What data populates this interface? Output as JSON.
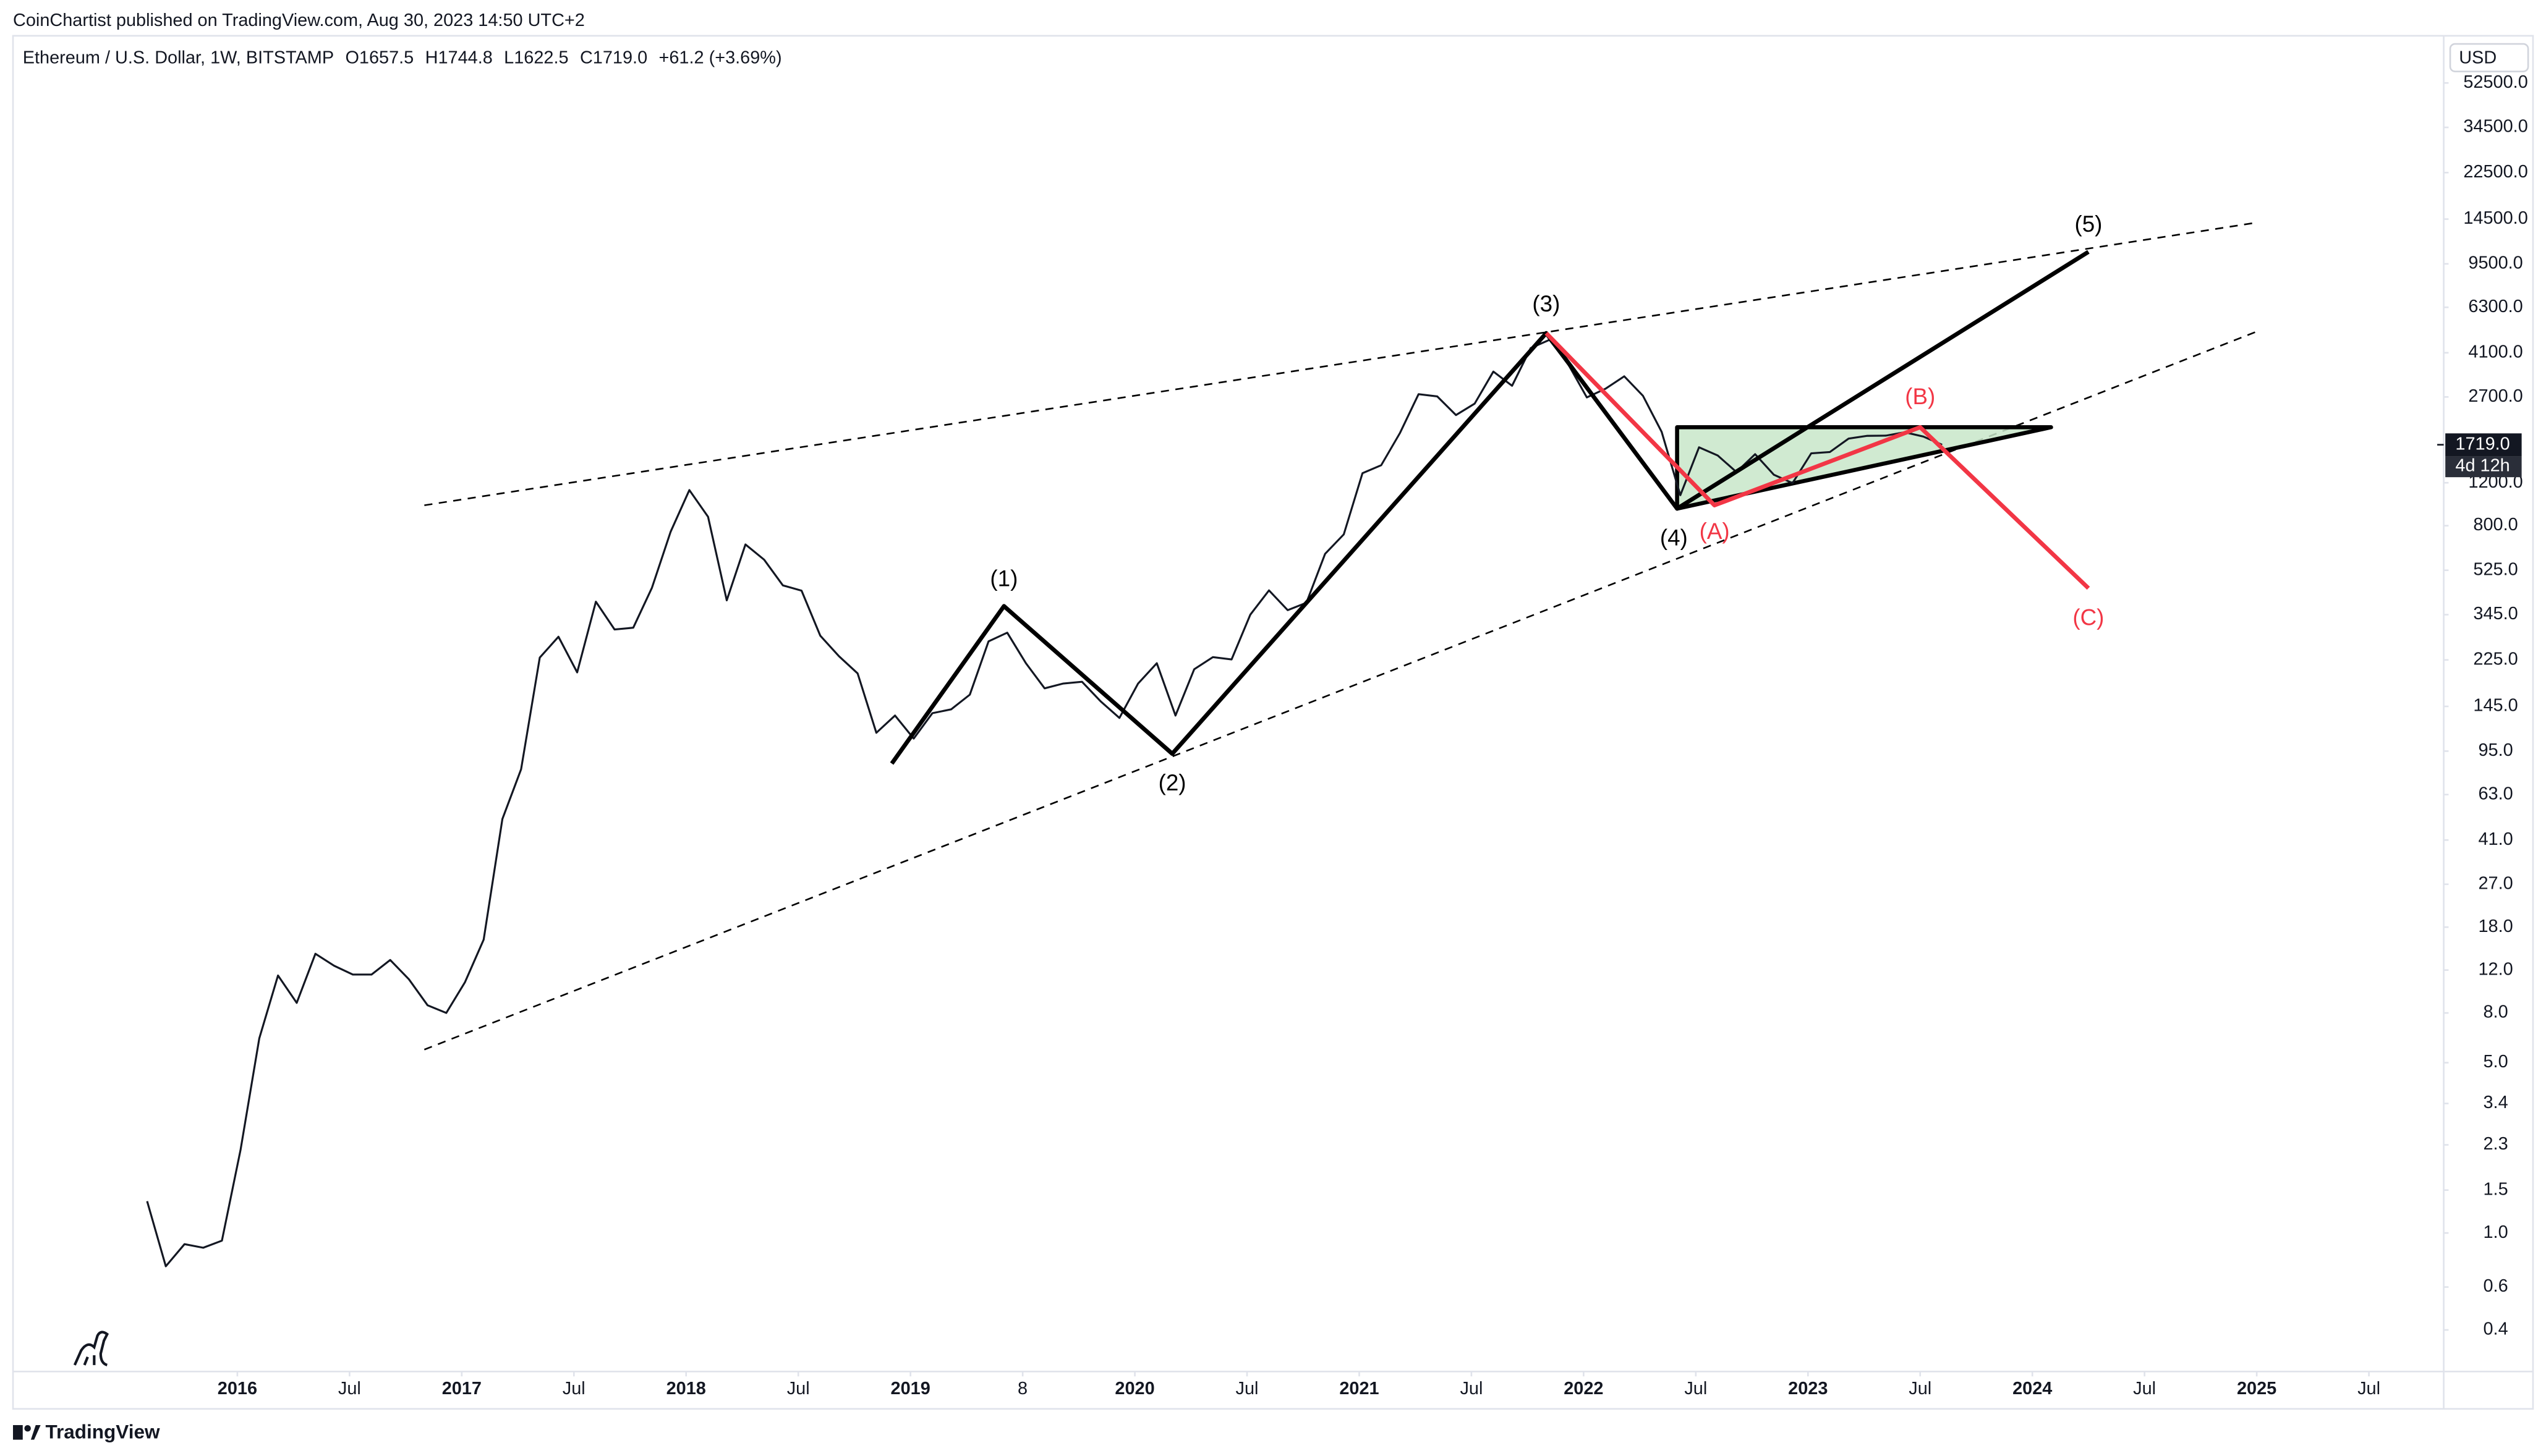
{
  "chart_data": {
    "type": "line",
    "attribution": "CoinChartist published on TradingView.com, Aug 30, 2023 14:50 UTC+2",
    "title": "Ethereum / U.S. Dollar, 1W, BITSTAMP",
    "ohlc": [
      "O1657.5",
      "H1744.8",
      "L1622.5",
      "C1719.0",
      "+61.2 (+3.69%)"
    ],
    "currency": "USD",
    "footer": "TradingView",
    "color": "#131722",
    "log_scale": true,
    "x": [
      "2015-08",
      "2015-09",
      "2015-10",
      "2015-11",
      "2015-12",
      "2016-01",
      "2016-02",
      "2016-03",
      "2016-04",
      "2016-05",
      "2016-06",
      "2016-07",
      "2016-08",
      "2016-09",
      "2016-10",
      "2016-11",
      "2016-12",
      "2017-01",
      "2017-02",
      "2017-03",
      "2017-04",
      "2017-05",
      "2017-06",
      "2017-07",
      "2017-08",
      "2017-09",
      "2017-10",
      "2017-11",
      "2017-12",
      "2018-01",
      "2018-02",
      "2018-03",
      "2018-04",
      "2018-05",
      "2018-06",
      "2018-07",
      "2018-08",
      "2018-09",
      "2018-10",
      "2018-11",
      "2018-12",
      "2019-01",
      "2019-02",
      "2019-03",
      "2019-04",
      "2019-05",
      "2019-06",
      "2019-07",
      "2019-08",
      "2019-09",
      "2019-10",
      "2019-11",
      "2019-12",
      "2020-01",
      "2020-02",
      "2020-03",
      "2020-04",
      "2020-05",
      "2020-06",
      "2020-07",
      "2020-08",
      "2020-09",
      "2020-10",
      "2020-11",
      "2020-12",
      "2021-01",
      "2021-02",
      "2021-03",
      "2021-04",
      "2021-05",
      "2021-06",
      "2021-07",
      "2021-08",
      "2021-09",
      "2021-10",
      "2021-11",
      "2021-12",
      "2022-01",
      "2022-02",
      "2022-03",
      "2022-04",
      "2022-05",
      "2022-06",
      "2022-07",
      "2022-08",
      "2022-09",
      "2022-10",
      "2022-11",
      "2022-12",
      "2023-01",
      "2023-02",
      "2023-03",
      "2023-04",
      "2023-05",
      "2023-06",
      "2023-07",
      "2023-08"
    ],
    "values": [
      1.35,
      0.73,
      0.9,
      0.87,
      0.93,
      2.2,
      6.3,
      11.4,
      8.8,
      14,
      12.5,
      11.5,
      11.5,
      13.2,
      11,
      8.6,
      8,
      10.7,
      16,
      50,
      80,
      230,
      280,
      200,
      390,
      300,
      305,
      445,
      756,
      1120,
      870,
      395,
      670,
      580,
      455,
      433,
      283,
      233,
      198,
      113,
      133,
      107,
      136,
      141,
      162,
      268,
      291,
      218,
      172,
      180,
      183,
      152,
      130,
      180,
      218,
      133,
      206,
      231,
      226,
      345,
      434,
      360,
      386,
      613,
      737,
      1314,
      1416,
      1918,
      2773,
      2714,
      2275,
      2535,
      3433,
      3001,
      4288,
      4631,
      3683,
      2688,
      2920,
      3282,
      2730,
      1942,
      1067,
      1678,
      1553,
      1328,
      1572,
      1295,
      1196,
      1585,
      1605,
      1822,
      1870,
      1874,
      1934,
      1857,
      1719
    ],
    "xlim": [
      "2015-01",
      "2025-11"
    ],
    "xticks": [
      {
        "value": "2016-01",
        "label": "2016"
      },
      {
        "value": "2016-07",
        "label": "Jul"
      },
      {
        "value": "2017-01",
        "label": "2017"
      },
      {
        "value": "2017-07",
        "label": "Jul"
      },
      {
        "value": "2018-01",
        "label": "2018"
      },
      {
        "value": "2018-07",
        "label": "Jul"
      },
      {
        "value": "2019-01",
        "label": "2019"
      },
      {
        "value": "2019-07",
        "label": "8"
      },
      {
        "value": "2020-01",
        "label": "2020"
      },
      {
        "value": "2020-07",
        "label": "Jul"
      },
      {
        "value": "2021-01",
        "label": "2021"
      },
      {
        "value": "2021-07",
        "label": "Jul"
      },
      {
        "value": "2022-01",
        "label": "2022"
      },
      {
        "value": "2022-07",
        "label": "Jul"
      },
      {
        "value": "2023-01",
        "label": "2023"
      },
      {
        "value": "2023-07",
        "label": "Jul"
      },
      {
        "value": "2024-01",
        "label": "2024"
      },
      {
        "value": "2024-07",
        "label": "Jul"
      },
      {
        "value": "2025-01",
        "label": "2025"
      },
      {
        "value": "2025-07",
        "label": "Jul"
      }
    ],
    "ylim": [
      0.27,
      82000
    ],
    "yticks": [
      {
        "value": 52500,
        "label": "52500.0"
      },
      {
        "value": 34500,
        "label": "34500.0"
      },
      {
        "value": 22500,
        "label": "22500.0"
      },
      {
        "value": 14500,
        "label": "14500.0"
      },
      {
        "value": 9500,
        "label": "9500.0"
      },
      {
        "value": 6300,
        "label": "6300.0"
      },
      {
        "value": 4100,
        "label": "4100.0"
      },
      {
        "value": 2700,
        "label": "2700.0"
      },
      {
        "value": 1200,
        "label": "1200.0"
      },
      {
        "value": 800,
        "label": "800.0"
      },
      {
        "value": 525,
        "label": "525.0"
      },
      {
        "value": 345,
        "label": "345.0"
      },
      {
        "value": 225,
        "label": "225.0"
      },
      {
        "value": 145,
        "label": "145.0"
      },
      {
        "value": 95,
        "label": "95.0"
      },
      {
        "value": 63,
        "label": "63.0"
      },
      {
        "value": 41,
        "label": "41.0"
      },
      {
        "value": 27,
        "label": "27.0"
      },
      {
        "value": 18,
        "label": "18.0"
      },
      {
        "value": 12,
        "label": "12.0"
      },
      {
        "value": 8,
        "label": "8.0"
      },
      {
        "value": 5,
        "label": "5.0"
      },
      {
        "value": 3.4,
        "label": "3.4"
      },
      {
        "value": 2.3,
        "label": "2.3"
      },
      {
        "value": 1.5,
        "label": "1.5"
      },
      {
        "value": 1,
        "label": "1.0"
      },
      {
        "value": 0.6,
        "label": "0.6"
      },
      {
        "value": 0.4,
        "label": "0.4"
      }
    ],
    "last_price": {
      "value": 1719,
      "label": "1719.0"
    },
    "countdown": "4d 12h",
    "trendlines": {
      "color": "#000000",
      "lines": [
        [
          {
            "x": "2016-11",
            "y": 970
          },
          {
            "x": "2025-01",
            "y": 14030
          }
        ],
        [
          {
            "x": "2016-11",
            "y": 5.66
          },
          {
            "x": "2025-01",
            "y": 5010
          }
        ]
      ]
    },
    "triangle": {
      "color": "#000000",
      "fill": "#c8e6c9",
      "points": [
        {
          "x": "2022-06",
          "y": 2028
        },
        {
          "x": "2024-02",
          "y": 2028
        },
        {
          "x": "2022-06",
          "y": 940
        }
      ]
    },
    "waves": {
      "color": "#000000",
      "points": [
        {
          "x": "2018-12",
          "y": 84.5,
          "label": null
        },
        {
          "x": "2019-06",
          "y": 374,
          "label": "(1)"
        },
        {
          "x": "2020-03",
          "y": 92.7,
          "label": "(2)"
        },
        {
          "x": "2021-11",
          "y": 4935,
          "label": "(3)"
        },
        {
          "x": "2022-06",
          "y": 940,
          "label": "(4)"
        },
        {
          "x": "2024-04",
          "y": 10640,
          "label": "(5)"
        }
      ]
    },
    "correction": {
      "color": "#f23645",
      "points": [
        {
          "x": "2021-11",
          "y": 4935,
          "label": null
        },
        {
          "x": "2022-08",
          "y": 970,
          "label": "(A)"
        },
        {
          "x": "2023-07",
          "y": 2028,
          "label": "(B)"
        },
        {
          "x": "2024-04",
          "y": 443,
          "label": "(C)"
        }
      ]
    }
  }
}
